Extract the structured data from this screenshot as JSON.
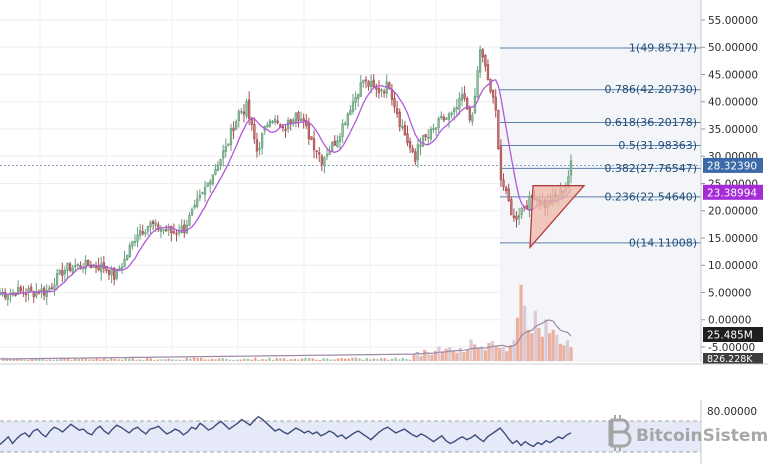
{
  "chart_data": {
    "type": "candlestick",
    "main": {
      "yticks": [
        "55.00000",
        "50.00000",
        "45.00000",
        "40.00000",
        "35.00000",
        "30.00000",
        "25.00000",
        "20.00000",
        "15.00000",
        "10.00000",
        "5.00000",
        "0.00000",
        "-5.00000"
      ],
      "ylim": [
        -5,
        55
      ],
      "last_price": "28.32390",
      "ma_value": "23.38994",
      "fib_levels": [
        {
          "label": "1(49.85717)",
          "value": 49.85717
        },
        {
          "label": "0.786(42.20730)",
          "value": 42.2073
        },
        {
          "label": "0.618(36.20178)",
          "value": 36.20178
        },
        {
          "label": "0.5(31.98363)",
          "value": 31.98363
        },
        {
          "label": "0.382(27.76547)",
          "value": 27.76547
        },
        {
          "label": "0.236(22.54640)",
          "value": 22.5464
        },
        {
          "label": "0(14.11008)",
          "value": 14.11008
        }
      ],
      "candle_count": 160,
      "anchors": [
        [
          0,
          4.9
        ],
        [
          18,
          5.3
        ],
        [
          25,
          9.2
        ],
        [
          32,
          10.3
        ],
        [
          40,
          9.8
        ],
        [
          44,
          8.0
        ],
        [
          48,
          11.0
        ],
        [
          53,
          16.2
        ],
        [
          58,
          17.5
        ],
        [
          66,
          16.0
        ],
        [
          71,
          16.8
        ],
        [
          78,
          23.0
        ],
        [
          82,
          27.0
        ],
        [
          87,
          31.5
        ],
        [
          92,
          38.0
        ],
        [
          95,
          39.0
        ],
        [
          99,
          31.0
        ],
        [
          104,
          37.5
        ],
        [
          109,
          34.5
        ],
        [
          114,
          38.5
        ],
        [
          119,
          34.0
        ],
        [
          124,
          29.5
        ],
        [
          129,
          32.5
        ],
        [
          134,
          38.0
        ],
        [
          140,
          44.0
        ],
        [
          145,
          42.0
        ],
        [
          150,
          43.0
        ],
        [
          154,
          36.5
        ],
        [
          160,
          29.0
        ]
      ],
      "anchors_right": [
        [
          0,
          32.0
        ],
        [
          5,
          33.5
        ],
        [
          10,
          36.5
        ],
        [
          15,
          37.8
        ],
        [
          18,
          41.0
        ],
        [
          22,
          36.5
        ],
        [
          25,
          49.8
        ],
        [
          28,
          44.0
        ],
        [
          31,
          38.0
        ],
        [
          33,
          26.0
        ],
        [
          35,
          23.0
        ],
        [
          38,
          18.5
        ],
        [
          42,
          21.0
        ],
        [
          46,
          23.0
        ],
        [
          50,
          21.0
        ],
        [
          54,
          22.5
        ],
        [
          58,
          24.5
        ],
        [
          60,
          28.3
        ]
      ]
    },
    "volume": {
      "value_label": "25.485M",
      "secondary_label": "826.228K",
      "bars": [
        2.0,
        2.6,
        1.4,
        3.2,
        2.2,
        1.8,
        2.9,
        4.2,
        2.8,
        3.6,
        4.0,
        3.0,
        2.4,
        3.8,
        2.6,
        3.3,
        6.2,
        4.8,
        3.6,
        4.2,
        3.1,
        5.2,
        5.8,
        4.4,
        3.8,
        4.0,
        2.8,
        4.6,
        6.0,
        12.5,
        22.0,
        16.0,
        9.0,
        8.0,
        14.5,
        9.5,
        7.0,
        12.0,
        8.0,
        9.0,
        7.5,
        5.0,
        4.5,
        6.0,
        4.0
      ],
      "ylim": [
        0,
        26
      ]
    },
    "rsi": {
      "ytick": "80.00000",
      "ylim": [
        30,
        85
      ],
      "upper": 70,
      "lower": 30,
      "values": [
        44,
        48,
        52,
        45,
        50,
        54,
        56,
        52,
        58,
        60,
        55,
        52,
        58,
        62,
        60,
        57,
        61,
        65,
        62,
        59,
        60,
        56,
        54,
        60,
        63,
        58,
        55,
        60,
        64,
        62,
        59,
        56,
        60,
        62,
        58,
        55,
        60,
        61,
        63,
        59,
        55,
        57,
        60,
        58,
        54,
        57,
        62,
        60,
        66,
        63,
        59,
        61,
        65,
        68,
        64,
        60,
        63,
        66,
        70,
        67,
        64,
        69,
        73,
        70,
        66,
        62,
        58,
        60,
        57,
        55,
        58,
        61,
        59,
        56,
        58,
        55,
        57,
        53,
        55,
        58,
        56,
        52,
        54,
        50,
        53,
        56,
        58,
        55,
        52,
        49,
        53,
        57,
        60,
        62,
        59,
        56,
        58,
        60,
        57,
        54,
        52,
        55,
        53,
        50,
        47,
        50,
        53,
        48,
        45,
        47,
        50,
        52,
        49,
        51,
        54,
        50,
        47,
        52,
        55,
        58,
        61,
        56,
        50,
        45,
        48,
        43,
        47,
        44,
        42,
        46,
        44,
        48,
        46,
        49,
        52,
        50,
        54,
        56
      ]
    }
  },
  "watermark": {
    "text": "BitcoinSistemi",
    "logo": "bitcoin-b-icon"
  },
  "colors": {
    "bull": "#6b9e7f",
    "bear": "#a64d4d",
    "ma": "#b05ad8",
    "fib": "#5c7ea8",
    "last_price_tag": "#3a6aa8",
    "ma_tag": "#a52bd6",
    "volume_tag": "#1f1f1f",
    "triangle_fill": "#f0b7a8",
    "triangle_stroke": "#b23c3c",
    "rsi_line": "#3d4d7a",
    "rsi_band": "#e6eaf8"
  }
}
